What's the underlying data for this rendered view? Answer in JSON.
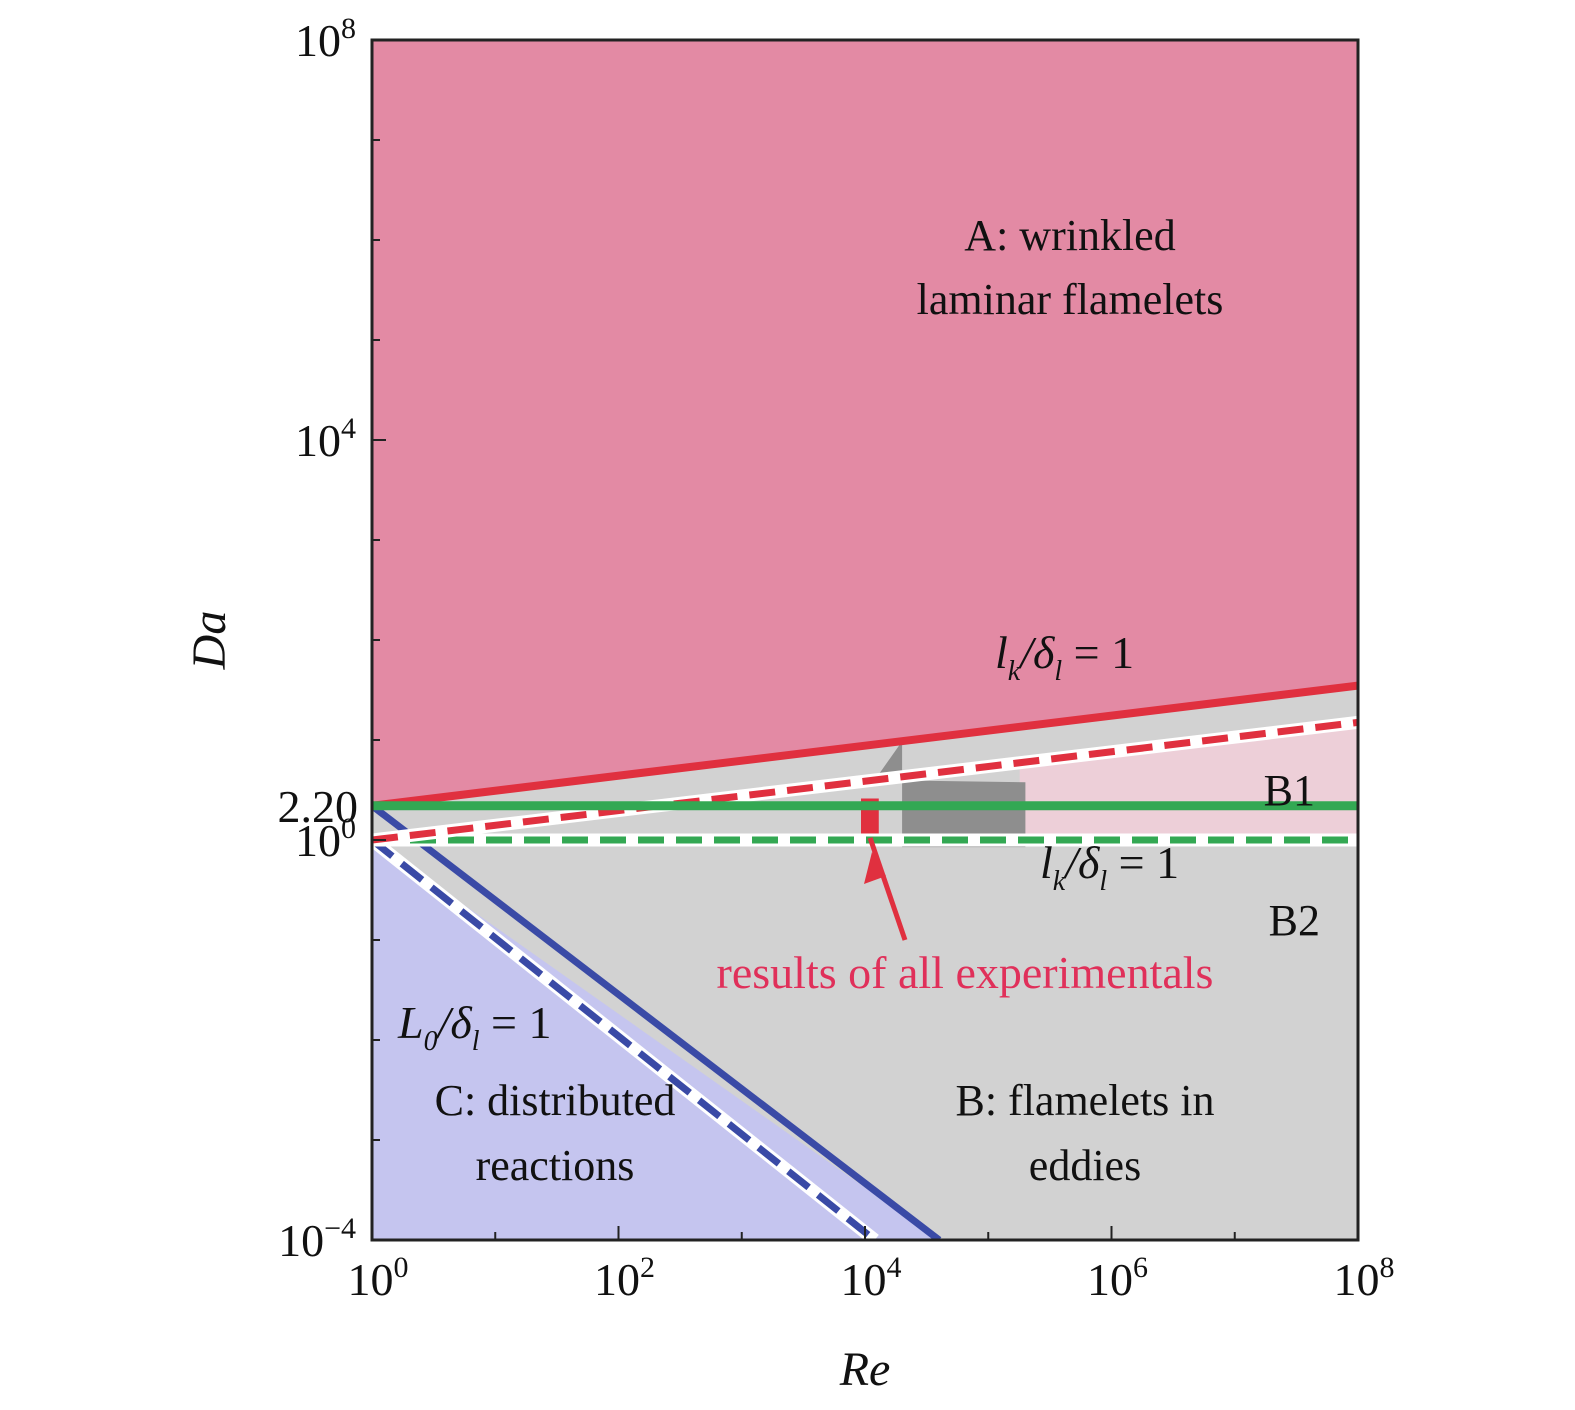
{
  "chart_data": {
    "type": "regime-diagram",
    "xlabel": "Re",
    "ylabel": "Da",
    "x_scale": "log",
    "y_scale": "log",
    "xlim": [
      1,
      100000000
    ],
    "ylim": [
      0.0001,
      100000000
    ],
    "x_ticks": [
      {
        "value": 1,
        "base": "10",
        "exp": "0"
      },
      {
        "value": 100,
        "base": "10",
        "exp": "2"
      },
      {
        "value": 10000,
        "base": "10",
        "exp": "4"
      },
      {
        "value": 1000000,
        "base": "10",
        "exp": "6"
      },
      {
        "value": 100000000,
        "base": "10",
        "exp": "8"
      }
    ],
    "y_ticks": [
      {
        "value": 0.0001,
        "base": "10",
        "exp": "−4"
      },
      {
        "value": 1,
        "base": "10",
        "exp": "0"
      },
      {
        "value": 10000,
        "base": "10",
        "exp": "4"
      },
      {
        "value": 100000000,
        "base": "10",
        "exp": "8"
      }
    ],
    "y_extra_tick": {
      "value": 2.2,
      "label": "2.20"
    },
    "regions": [
      {
        "id": "A",
        "color": "#e38aa4",
        "text_lines": [
          "A: wrinkled",
          "laminar flamelets"
        ]
      },
      {
        "id": "B",
        "color": "#d2d2d2",
        "text_lines": [
          "B: flamelets in",
          "eddies"
        ]
      },
      {
        "id": "C",
        "color": "#c5c5ef",
        "text_lines": [
          "C: distributed",
          "reactions"
        ]
      },
      {
        "id": "B1-band",
        "color": "#f2cfd9"
      }
    ],
    "zone_labels": [
      "B1",
      "B2"
    ],
    "lines": [
      {
        "id": "kolmogorov-solid",
        "style": "solid",
        "color": "#e0303f",
        "x": [
          1,
          100000000
        ],
        "y": [
          2.2,
          35
        ]
      },
      {
        "id": "kolmogorov-dashed",
        "style": "dashed",
        "color": "#e0303f",
        "x": [
          1,
          100000000
        ],
        "y": [
          1,
          15
        ]
      },
      {
        "id": "da-2.2",
        "style": "solid",
        "color": "#33a853",
        "x": [
          1,
          100000000
        ],
        "y": [
          2.2,
          2.2
        ]
      },
      {
        "id": "da-1",
        "style": "dashed",
        "color": "#33a853",
        "x": [
          1,
          100000000
        ],
        "y": [
          1,
          1
        ]
      },
      {
        "id": "integral-solid",
        "style": "solid",
        "color": "#3a4aa6",
        "x": [
          1,
          40000
        ],
        "y": [
          2.2,
          0.0001
        ]
      },
      {
        "id": "integral-dashed",
        "style": "dashed",
        "color": "#3a4aa6",
        "x": [
          1,
          12000
        ],
        "y": [
          1,
          0.0001
        ]
      }
    ],
    "line_labels": {
      "kolmogorov_upper": {
        "a": "l",
        "a_sub": "k",
        "b": "/δ",
        "b_sub": "l",
        "rest": " = 1"
      },
      "kolmogorov_lower": {
        "a": "l",
        "a_sub": "k",
        "b": "/δ",
        "b_sub": "l",
        "rest": " = 1"
      },
      "integral": {
        "a": "L",
        "a_sub": "0",
        "b": "/δ",
        "b_sub": "l",
        "rest": " = 1"
      }
    },
    "experimental_region": {
      "label": "results of all experimentals",
      "label_color": "#e0305a",
      "gray_box": {
        "x": [
          20000,
          200000
        ],
        "y": [
          0.85,
          4.6
        ]
      },
      "red_bar": {
        "x": [
          10000,
          12000
        ],
        "y": [
          1.1,
          2.6
        ]
      }
    },
    "legend": "none",
    "grid": false
  }
}
